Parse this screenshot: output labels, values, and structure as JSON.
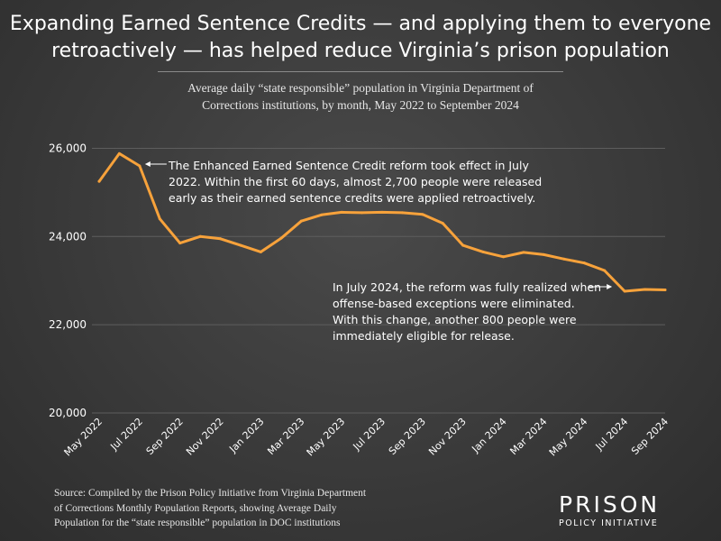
{
  "title": {
    "line1": "Expanding Earned Sentence Credits — and applying them to everyone",
    "line2": "retroactively — has helped reduce Virginia’s prison population"
  },
  "subtitle": {
    "line1": "Average daily “state responsible” population in Virginia Department of",
    "line2": "Corrections institutions, by month, May 2022 to September 2024"
  },
  "source": {
    "line1": "Source: Compiled by the Prison Policy Initiative from Virginia Department",
    "line2": "of Corrections Monthly Population Reports, showing Average Daily",
    "line3": "Population for the “state responsible” population in DOC institutions"
  },
  "logo": {
    "main": "PRISON",
    "sub": "POLICY INITIATIVE"
  },
  "chart_data": {
    "type": "line",
    "title": "",
    "xlabel": "",
    "ylabel": "",
    "ylim": [
      20000,
      26500
    ],
    "grid": true,
    "line_color": "#f7a23b",
    "grid_color": "#5e5e5e",
    "y_ticks": [
      20000,
      22000,
      24000,
      26000
    ],
    "y_tick_labels": [
      "20,000",
      "22,000",
      "24,000",
      "26,000"
    ],
    "x_tick_labels": [
      "May 2022",
      "Jul 2022",
      "Sep 2022",
      "Nov 2022",
      "Jan 2023",
      "Mar 2023",
      "May 2023",
      "Jul 2023",
      "Sep 2023",
      "Nov 2023",
      "Jan 2024",
      "Mar 2024",
      "May 2024",
      "Jul 2024",
      "Sep 2024"
    ],
    "categories": [
      "May 2022",
      "Jun 2022",
      "Jul 2022",
      "Aug 2022",
      "Sep 2022",
      "Oct 2022",
      "Nov 2022",
      "Dec 2022",
      "Jan 2023",
      "Feb 2023",
      "Mar 2023",
      "Apr 2023",
      "May 2023",
      "Jun 2023",
      "Jul 2023",
      "Aug 2023",
      "Sep 2023",
      "Oct 2023",
      "Nov 2023",
      "Dec 2023",
      "Jan 2024",
      "Feb 2024",
      "Mar 2024",
      "Apr 2024",
      "May 2024",
      "Jun 2024",
      "Jul 2024",
      "Aug 2024",
      "Sep 2024"
    ],
    "values": [
      25250,
      25880,
      25600,
      24400,
      23850,
      24000,
      23950,
      23800,
      23650,
      23960,
      24350,
      24490,
      24550,
      24540,
      24550,
      24540,
      24500,
      24300,
      23800,
      23650,
      23540,
      23640,
      23590,
      23490,
      23400,
      23230,
      22760,
      22800,
      22790
    ],
    "annotations": [
      {
        "lines": [
          "The Enhanced Earned Sentence Credit reform took effect in July",
          "2022. Within the first 60 days, almost 2,700 people were released",
          "early as their earned sentence credits were applied retroactively."
        ],
        "target": "Jul 2022"
      },
      {
        "lines": [
          "In July 2024, the reform was fully realized when",
          "offense-based exceptions were eliminated.",
          "With this change, another 800 people were",
          "immediately eligible for release."
        ],
        "target": "Jul 2024"
      }
    ]
  }
}
